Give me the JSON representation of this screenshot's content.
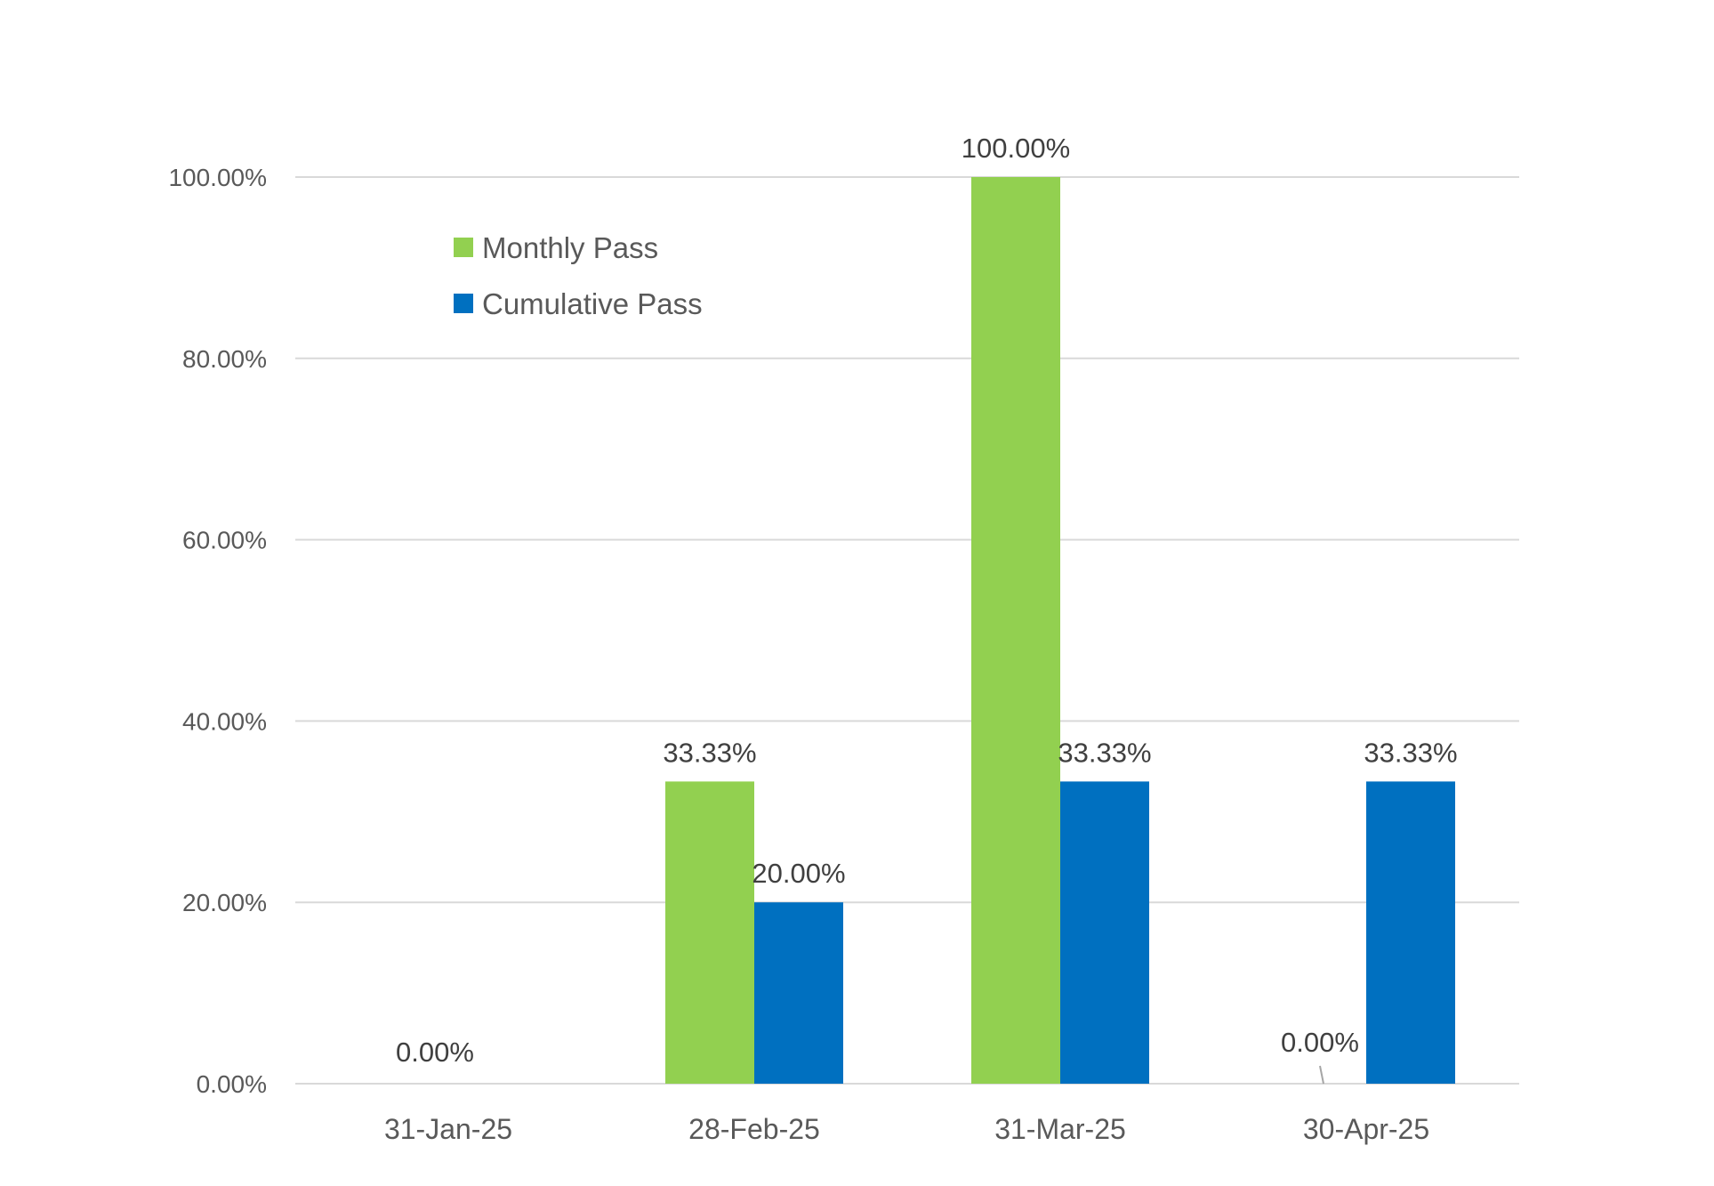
{
  "chart_data": {
    "type": "bar",
    "categories": [
      "31-Jan-25",
      "28-Feb-25",
      "31-Mar-25",
      "30-Apr-25"
    ],
    "series": [
      {
        "name": "Monthly Pass",
        "color": "#92D050",
        "values": [
          0,
          33.33,
          100,
          0
        ],
        "labels": [
          "0.00%",
          "33.33%",
          "100.00%",
          "0.00%"
        ]
      },
      {
        "name": "Cumulative Pass",
        "color": "#0070C0",
        "values": [
          null,
          20,
          33.33,
          33.33
        ],
        "labels": [
          "",
          "20.00%",
          "33.33%",
          "33.33%"
        ]
      }
    ],
    "ylim": [
      0,
      100
    ],
    "yticks": [
      0,
      20,
      40,
      60,
      80,
      100
    ],
    "ytick_labels": [
      "0.00%",
      "20.00%",
      "40.00%",
      "60.00%",
      "80.00%",
      "100.00%"
    ],
    "title": "",
    "xlabel": "",
    "ylabel": "",
    "grid": true,
    "legend_position": "top-left"
  }
}
